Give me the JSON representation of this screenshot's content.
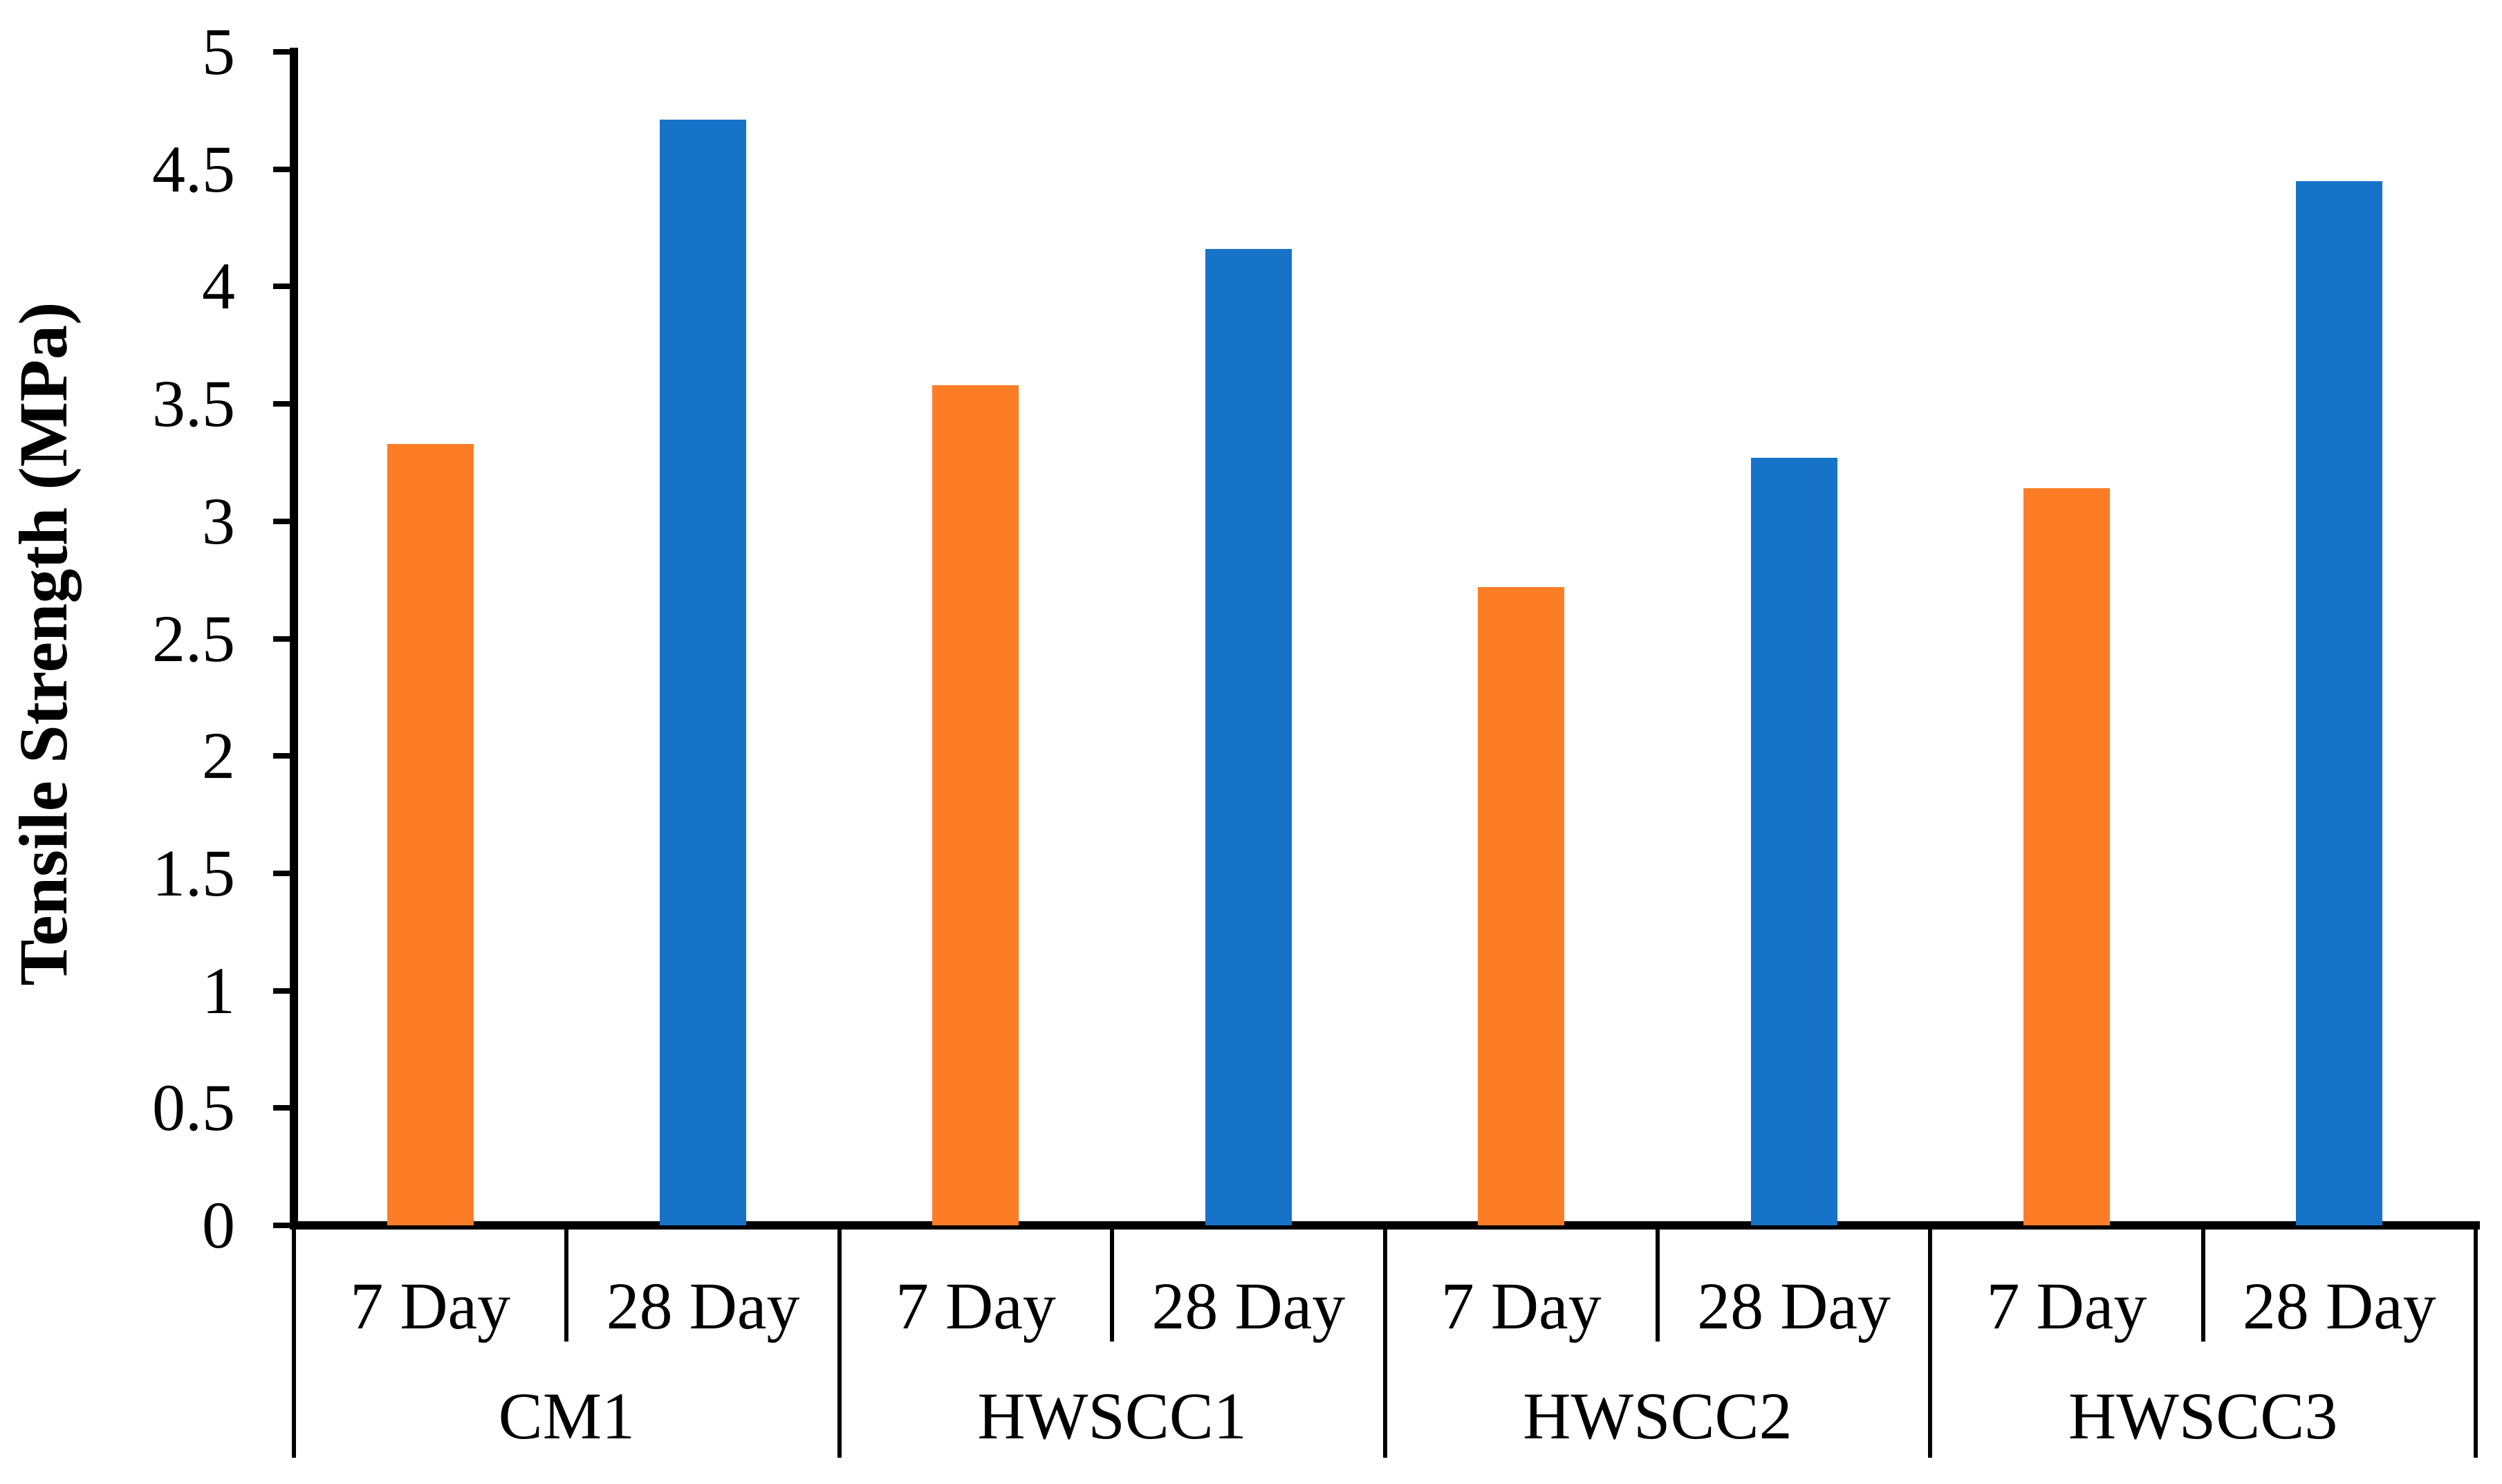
{
  "page": {
    "background": "#FFFFFF"
  },
  "chart_data": {
    "type": "bar",
    "title": "",
    "ylabel": "Tensile Strength (MPa)",
    "xlabel": "",
    "ylim": [
      0,
      5
    ],
    "ytick_step": 0.5,
    "yticks": [
      "0",
      "0.5",
      "1",
      "1.5",
      "2",
      "2.5",
      "3",
      "3.5",
      "4",
      "4.5",
      "5"
    ],
    "grid": false,
    "legend_position": "none",
    "axis_color": "#000000",
    "background_color": "#FFFFFF",
    "categories": [
      "CM1",
      "HWSCC1",
      "HWSCC2",
      "HWSCC3"
    ],
    "series": [
      {
        "name": "7 Day",
        "color": "#FC7D26",
        "values": [
          3.33,
          3.58,
          2.72,
          3.14
        ]
      },
      {
        "name": "28 Day",
        "color": "#1773C8",
        "values": [
          4.71,
          4.16,
          3.27,
          4.45
        ]
      }
    ],
    "x_axis_layout": "two-row boxed category axis: per-bar age labels (7 Day / 28 Day) above mix group labels"
  }
}
